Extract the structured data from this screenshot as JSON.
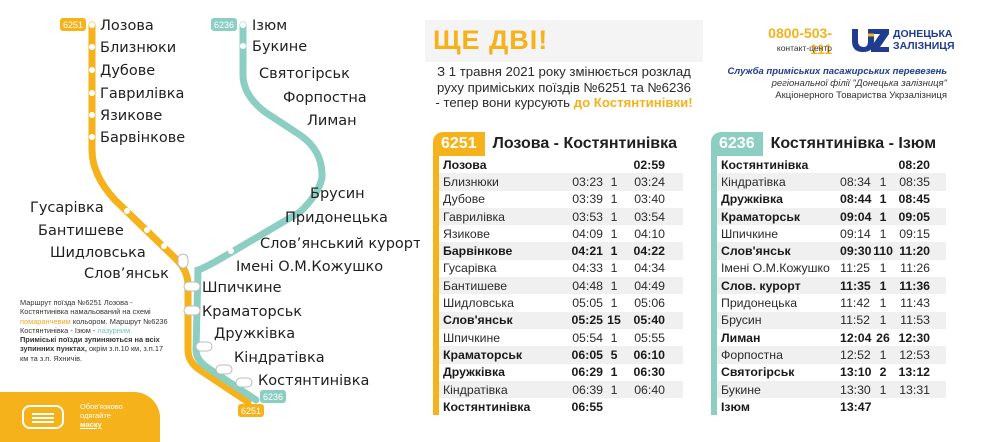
{
  "map": {
    "line_colors": {
      "orange": "#f6b21b",
      "green": "#8ccfc2"
    },
    "badges": {
      "top_orange": "6251",
      "top_green": "6236",
      "bottom_orange": "6251",
      "bottom_green": "6236"
    },
    "stations_orange": [
      "Лозова",
      "Близнюки",
      "Дубове",
      "Гаврилівка",
      "Язикове",
      "Барвінкове",
      "Гусарівка",
      "Бантишеве",
      "Шидловська",
      "Слов’янськ"
    ],
    "stations_green": [
      "Ізюм",
      "Букине",
      "Святогірськ",
      "Форпостна",
      "Лиман",
      "Брусин",
      "Придонецька",
      "Слов’янський курорт",
      "Імені О.М.Кожушко"
    ],
    "stations_shared": [
      "Шпичкине",
      "Краматорськ",
      "Дружківка",
      "Кіндратівка",
      "Костянтинівка"
    ]
  },
  "note": {
    "p1": "Маршрут поїзда №6251 Лозова - Костянтинівка намальований на схемі",
    "p1_color": "помаранчевим",
    "p1_end": "кольором.",
    "p2": "Маршрут №6236 Костянтинівка - Ізюм -",
    "p2_color": "лазурним.",
    "p2_bold": "Приміські поїзди зупиняються на всіх зупинних пунктах,",
    "p2_end": "окрім з.п.10 км, з.п.17 км та з.п. Яхничів."
  },
  "mask": {
    "line1": "Обов'язково одягайте",
    "line2": "маску"
  },
  "header": {
    "title": "ЩЕ ДВІ!"
  },
  "intro": {
    "line1": "З 1 травня 2021 року змінюється розклад",
    "line2": "руху приміських поїздів №6251 та №6236",
    "line3": "- тепер вони курсують",
    "highlight": "до Костянтинівки!"
  },
  "contact": {
    "phone": "0800-503-111",
    "label": "контакт-центр"
  },
  "logo": {
    "line1": "ДОНЕЦЬКА",
    "line2": "ЗАЛІЗНИЦЯ"
  },
  "service": {
    "line1": "Служба приміських пасажирських перевезень",
    "line2": "регіональної філії \"Донецька залізниця\"",
    "line3": "Акціонерного Товариства Укрзалізниця"
  },
  "tt1": {
    "number": "6251",
    "title": "Лозова - Костянтинівка",
    "color": "#f6b21b",
    "rows": [
      {
        "name": "Лозова",
        "arr": "",
        "wait": "",
        "dep": "02:59",
        "bold": true
      },
      {
        "name": "Близнюки",
        "arr": "03:23",
        "wait": "1",
        "dep": "03:24",
        "bold": false
      },
      {
        "name": "Дубове",
        "arr": "03:39",
        "wait": "1",
        "dep": "03:40",
        "bold": false
      },
      {
        "name": "Гаврилівка",
        "arr": "03:53",
        "wait": "1",
        "dep": "03:54",
        "bold": false
      },
      {
        "name": "Язикове",
        "arr": "04:09",
        "wait": "1",
        "dep": "04:10",
        "bold": false
      },
      {
        "name": "Барвінкове",
        "arr": "04:21",
        "wait": "1",
        "dep": "04:22",
        "bold": true
      },
      {
        "name": "Гусарівка",
        "arr": "04:33",
        "wait": "1",
        "dep": "04:34",
        "bold": false
      },
      {
        "name": "Бантишеве",
        "arr": "04:48",
        "wait": "1",
        "dep": "04:49",
        "bold": false
      },
      {
        "name": "Шидловська",
        "arr": "05:05",
        "wait": "1",
        "dep": "05:06",
        "bold": false
      },
      {
        "name": "Слов'янськ",
        "arr": "05:25",
        "wait": "15",
        "dep": "05:40",
        "bold": true
      },
      {
        "name": "Шпичкине",
        "arr": "05:54",
        "wait": "1",
        "dep": "05:55",
        "bold": false
      },
      {
        "name": "Краматорськ",
        "arr": "06:05",
        "wait": "5",
        "dep": "06:10",
        "bold": true
      },
      {
        "name": "Дружківка",
        "arr": "06:29",
        "wait": "1",
        "dep": "06:30",
        "bold": true
      },
      {
        "name": "Кіндратівка",
        "arr": "06:39",
        "wait": "1",
        "dep": "06:40",
        "bold": false
      },
      {
        "name": "Костянтинівка",
        "arr": "06:55",
        "wait": "",
        "dep": "",
        "bold": true
      }
    ]
  },
  "tt2": {
    "number": "6236",
    "title": "Костянтинівка - Ізюм",
    "color": "#8ccfc2",
    "rows": [
      {
        "name": "Костянтинівка",
        "arr": "",
        "wait": "",
        "dep": "08:20",
        "bold": true
      },
      {
        "name": "Кіндратівка",
        "arr": "08:34",
        "wait": "1",
        "dep": "08:35",
        "bold": false
      },
      {
        "name": "Дружківка",
        "arr": "08:44",
        "wait": "1",
        "dep": "08:45",
        "bold": true
      },
      {
        "name": "Краматорськ",
        "arr": "09:04",
        "wait": "1",
        "dep": "09:05",
        "bold": true
      },
      {
        "name": "Шпичкине",
        "arr": "09:14",
        "wait": "1",
        "dep": "09:15",
        "bold": false
      },
      {
        "name": "Слов'янськ",
        "arr": "09:30",
        "wait": "110",
        "dep": "11:20",
        "bold": true
      },
      {
        "name": "Імені О.М.Кожушко",
        "arr": "11:25",
        "wait": "1",
        "dep": "11:26",
        "bold": false
      },
      {
        "name": "Слов. курорт",
        "arr": "11:35",
        "wait": "1",
        "dep": "11:36",
        "bold": true
      },
      {
        "name": "Придонецька",
        "arr": "11:42",
        "wait": "1",
        "dep": "11:43",
        "bold": false
      },
      {
        "name": "Брусин",
        "arr": "11:52",
        "wait": "1",
        "dep": "11:53",
        "bold": false
      },
      {
        "name": "Лиман",
        "arr": "12:04",
        "wait": "26",
        "dep": "12:30",
        "bold": true
      },
      {
        "name": "Форпостна",
        "arr": "12:52",
        "wait": "1",
        "dep": "12:53",
        "bold": false
      },
      {
        "name": "Святогірськ",
        "arr": "13:10",
        "wait": "2",
        "dep": "13:12",
        "bold": true
      },
      {
        "name": "Букине",
        "arr": "13:30",
        "wait": "1",
        "dep": "13:31",
        "bold": false
      },
      {
        "name": "Ізюм",
        "arr": "13:47",
        "wait": "",
        "dep": "",
        "bold": true
      }
    ]
  }
}
